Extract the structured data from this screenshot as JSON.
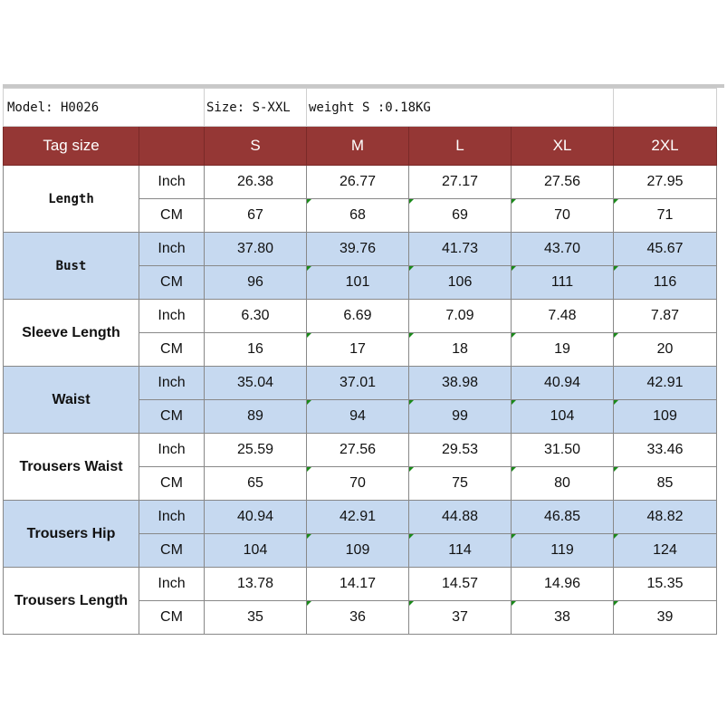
{
  "info": {
    "model": "Model: H0026",
    "size": "Size: S-XXL",
    "weight": "weight S :0.18KG"
  },
  "header": {
    "tag_size": "Tag size",
    "sizes": [
      "S",
      "M",
      "L",
      "XL",
      "2XL"
    ]
  },
  "units": {
    "inch": "Inch",
    "cm": "CM"
  },
  "rows": [
    {
      "label": "Length",
      "inch": [
        "26.38",
        "26.77",
        "27.17",
        "27.56",
        "27.95"
      ],
      "cm": [
        "67",
        "68",
        "69",
        "70",
        "71"
      ]
    },
    {
      "label": "Bust",
      "inch": [
        "37.80",
        "39.76",
        "41.73",
        "43.70",
        "45.67"
      ],
      "cm": [
        "96",
        "101",
        "106",
        "111",
        "116"
      ]
    },
    {
      "label": "Sleeve  Length",
      "inch": [
        "6.30",
        "6.69",
        "7.09",
        "7.48",
        "7.87"
      ],
      "cm": [
        "16",
        "17",
        "18",
        "19",
        "20"
      ]
    },
    {
      "label": "Waist",
      "inch": [
        "35.04",
        "37.01",
        "38.98",
        "40.94",
        "42.91"
      ],
      "cm": [
        "89",
        "94",
        "99",
        "104",
        "109"
      ]
    },
    {
      "label": "Trousers Waist",
      "inch": [
        "25.59",
        "27.56",
        "29.53",
        "31.50",
        "33.46"
      ],
      "cm": [
        "65",
        "70",
        "75",
        "80",
        "85"
      ]
    },
    {
      "label": "Trousers Hip",
      "inch": [
        "40.94",
        "42.91",
        "44.88",
        "46.85",
        "48.82"
      ],
      "cm": [
        "104",
        "109",
        "114",
        "119",
        "124"
      ]
    },
    {
      "label": "Trousers Length",
      "inch": [
        "13.78",
        "14.17",
        "14.57",
        "14.96",
        "15.35"
      ],
      "cm": [
        "35",
        "36",
        "37",
        "38",
        "39"
      ]
    }
  ],
  "colors": {
    "header_bg": "#953735",
    "header_text": "#ffffff",
    "band_blue": "#c6d9f0",
    "cell_marker": "#1a8a1a"
  }
}
